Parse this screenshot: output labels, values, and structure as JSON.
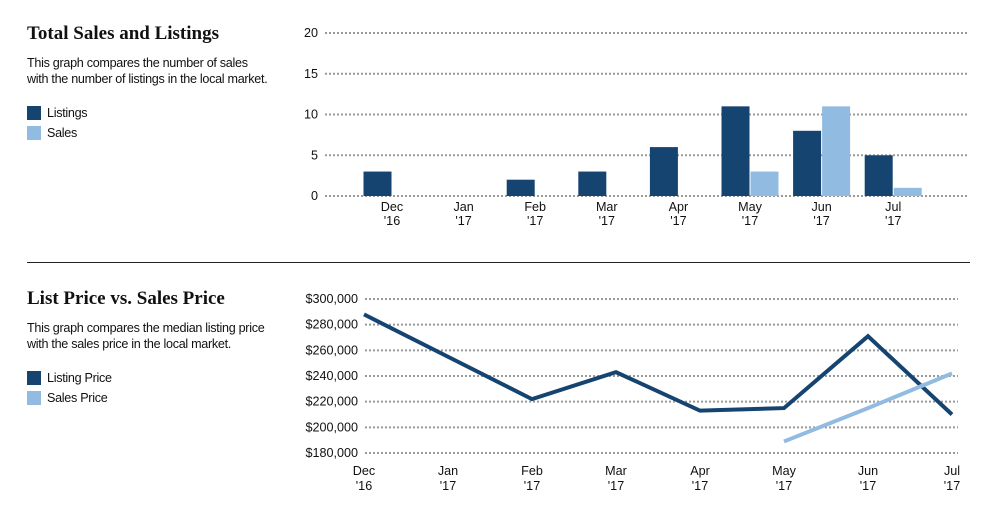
{
  "colors": {
    "primary": "#154470",
    "secondary": "#92bbe2",
    "grid": "#999999"
  },
  "panels": [
    {
      "title": "Total Sales and Listings",
      "description": "This graph compares the number of sales with the number of listings in the local market.",
      "legend": [
        "Listings",
        "Sales"
      ]
    },
    {
      "title": "List Price vs. Sales Price",
      "description": "This graph compares the median listing price with the sales price in the local market.",
      "legend": [
        "Listing Price",
        "Sales Price"
      ]
    }
  ],
  "chart_data": [
    {
      "type": "bar",
      "title": "Total Sales and Listings",
      "categories": [
        [
          "Dec",
          "'16"
        ],
        [
          "Jan",
          "'17"
        ],
        [
          "Feb",
          "'17"
        ],
        [
          "Mar",
          "'17"
        ],
        [
          "Apr",
          "'17"
        ],
        [
          "May",
          "'17"
        ],
        [
          "Jun",
          "'17"
        ],
        [
          "Jul",
          "'17"
        ]
      ],
      "series": [
        {
          "name": "Listings",
          "values": [
            3,
            0,
            2,
            3,
            6,
            11,
            8,
            5
          ]
        },
        {
          "name": "Sales",
          "values": [
            0,
            0,
            0,
            0,
            0,
            3,
            11,
            1
          ]
        }
      ],
      "ylim": [
        0,
        20
      ],
      "yticks": [
        0,
        5,
        10,
        15,
        20
      ],
      "grid": true
    },
    {
      "type": "line",
      "title": "List Price vs. Sales Price",
      "categories": [
        [
          "Dec",
          "'16"
        ],
        [
          "Jan",
          "'17"
        ],
        [
          "Feb",
          "'17"
        ],
        [
          "Mar",
          "'17"
        ],
        [
          "Apr",
          "'17"
        ],
        [
          "May",
          "'17"
        ],
        [
          "Jun",
          "'17"
        ],
        [
          "Jul",
          "'17"
        ]
      ],
      "series": [
        {
          "name": "Listing Price",
          "values": [
            288000,
            255000,
            222000,
            243000,
            213000,
            215000,
            271000,
            210000
          ]
        },
        {
          "name": "Sales Price",
          "values": [
            null,
            null,
            null,
            null,
            null,
            189000,
            215000,
            242000
          ]
        }
      ],
      "ylim": [
        180000,
        300000
      ],
      "yticks": [
        "$180,000",
        "$200,000",
        "$220,000",
        "$240,000",
        "$260,000",
        "$280,000",
        "$300,000"
      ],
      "grid": true
    }
  ]
}
